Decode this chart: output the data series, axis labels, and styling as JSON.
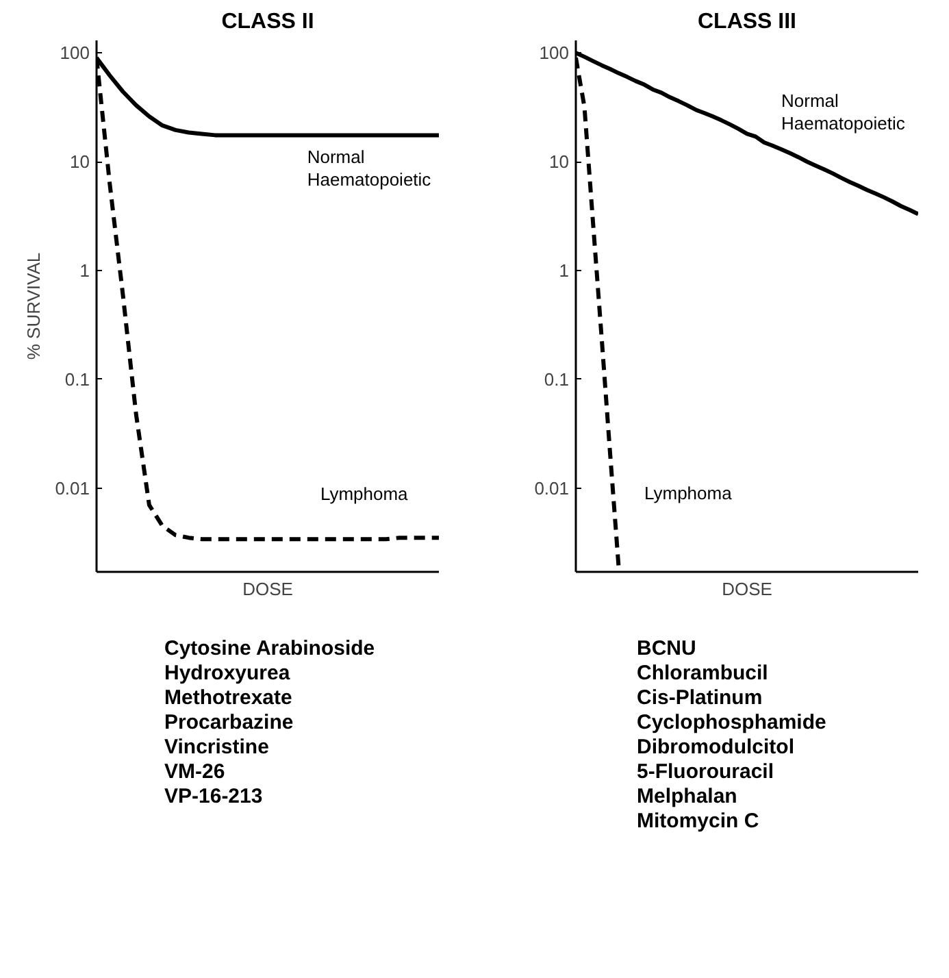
{
  "chart_data": [
    {
      "type": "line",
      "title": "CLASS II",
      "xlabel": "DOSE",
      "ylabel": "% SURVIVAL",
      "log": true,
      "grid": false,
      "tick_labels": "y",
      "categories": [
        null,
        null,
        null,
        null,
        null,
        null,
        null,
        null,
        null,
        null,
        null,
        null,
        null,
        null,
        null,
        null,
        null,
        null,
        null,
        null,
        null,
        null,
        null,
        null,
        null,
        null,
        null
      ],
      "ylim": [
        0.0017,
        130
      ],
      "yticks": [
        0.01,
        0.1,
        1,
        10,
        100
      ],
      "series": [
        {
          "name": "Normal\nHaematopoietic",
          "color": "#000000",
          "line_style": "solid",
          "values": [
            90,
            62,
            44,
            33,
            26,
            21.5,
            19.5,
            18.5,
            18,
            17.5,
            17.5,
            17.5,
            17.5,
            17.5,
            17.5,
            17.5,
            17.5,
            17.5,
            17.5,
            17.5,
            17.5,
            17.5,
            17.5,
            17.5,
            17.5,
            17.5,
            17.5
          ]
        },
        {
          "name": "Lymphoma",
          "color": "#000000",
          "line_style": "dashed",
          "values": [
            90,
            6.3,
            0.6,
            0.048,
            0.007,
            0.0045,
            0.0037,
            0.0035,
            0.0034,
            0.0034,
            0.0034,
            0.0034,
            0.0034,
            0.0034,
            0.0034,
            0.0034,
            0.0034,
            0.0034,
            0.0034,
            0.0034,
            0.0034,
            0.0034,
            0.0034,
            0.0035,
            0.0035,
            0.0035,
            0.0035
          ]
        }
      ],
      "annotations": [
        "Cytosine Arabinoside",
        "Hydroxyurea",
        "Methotrexate",
        "Procarbazine",
        "Vincristine",
        "VM-26",
        "VP-16-213"
      ]
    },
    {
      "type": "line",
      "title": "CLASS III",
      "xlabel": "DOSE",
      "log": true,
      "grid": false,
      "tick_labels": "y",
      "categories": [
        null,
        null,
        null,
        null,
        null,
        null,
        null,
        null,
        null,
        null,
        null,
        null,
        null,
        null,
        null,
        null,
        null,
        null,
        null,
        null,
        null,
        null,
        null,
        null,
        null,
        null,
        null,
        null,
        null,
        null,
        null,
        null,
        null,
        null,
        null,
        null,
        null,
        null,
        null,
        null,
        null
      ],
      "ylim": [
        0.0017,
        130
      ],
      "yticks": [
        0.01,
        0.1,
        1,
        10,
        100
      ],
      "series": [
        {
          "name": "Normal\nHaematopoietic",
          "color": "#000000",
          "line_style": "solid",
          "values": [
            100,
            92,
            84,
            77,
            71,
            65,
            60,
            55,
            51,
            46,
            43,
            39,
            36,
            33,
            30,
            28,
            26,
            24,
            22,
            20,
            18,
            17,
            15,
            14,
            13,
            12,
            11,
            10,
            9.2,
            8.5,
            7.8,
            7.1,
            6.5,
            6.0,
            5.5,
            5.1,
            4.7,
            4.3,
            3.9,
            3.6,
            3.3
          ]
        },
        {
          "name": "Lymphoma",
          "color": "#000000",
          "line_style": "dashed",
          "values": [
            90,
            32,
            2.8,
            0.25,
            0.021,
            0.0019,
            null,
            null,
            null,
            null,
            null,
            null,
            null,
            null,
            null,
            null,
            null,
            null,
            null,
            null,
            null,
            null,
            null,
            null,
            null,
            null,
            null,
            null,
            null,
            null,
            null,
            null,
            null,
            null,
            null,
            null,
            null,
            null,
            null,
            null,
            null
          ]
        }
      ],
      "annotations": [
        "BCNU",
        "Chlorambucil",
        "Cis-Platinum",
        "Cyclophosphamide",
        "Dibromodulcitol",
        "5-Fluorouracil",
        "Melphalan",
        "Mitomycin C"
      ]
    }
  ]
}
